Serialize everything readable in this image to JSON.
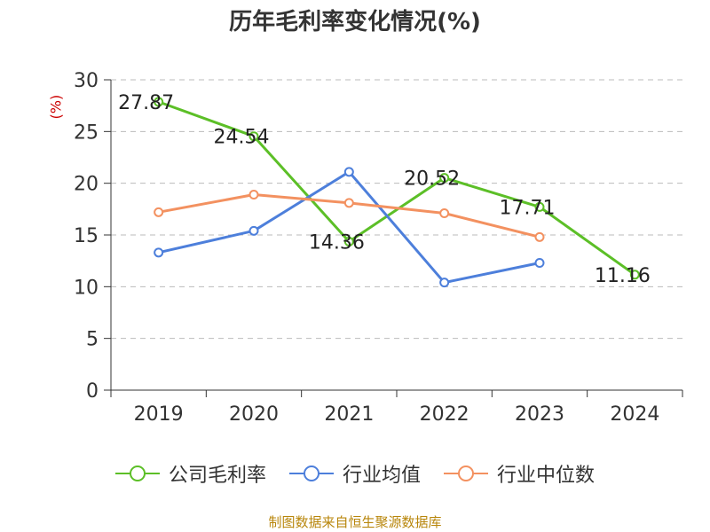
{
  "page": {
    "title": "历年毛利率变化情况(%)",
    "source": "制图数据来自恒生聚源数据库"
  },
  "chart_data": {
    "type": "line",
    "title": "历年毛利率变化情况(%)",
    "ylabel": "(%)",
    "ylim": [
      0,
      30
    ],
    "yticks": [
      0,
      5,
      10,
      15,
      20,
      25,
      30
    ],
    "grid": true,
    "legend_position": "bottom",
    "categories": [
      "2019",
      "2020",
      "2021",
      "2022",
      "2023",
      "2024"
    ],
    "series": [
      {
        "name": "公司毛利率",
        "color": "#5cbf27",
        "values": [
          27.87,
          24.54,
          14.36,
          20.52,
          17.71,
          11.16
        ],
        "labels": [
          "27.87",
          "24.54",
          "14.36",
          "20.52",
          "17.71",
          "11.16"
        ]
      },
      {
        "name": "行业均值",
        "color": "#4d7fdb",
        "values": [
          13.3,
          15.4,
          21.1,
          10.4,
          12.3,
          null
        ]
      },
      {
        "name": "行业中位数",
        "color": "#f39160",
        "values": [
          17.2,
          18.9,
          18.1,
          17.1,
          14.8,
          null
        ]
      }
    ]
  }
}
